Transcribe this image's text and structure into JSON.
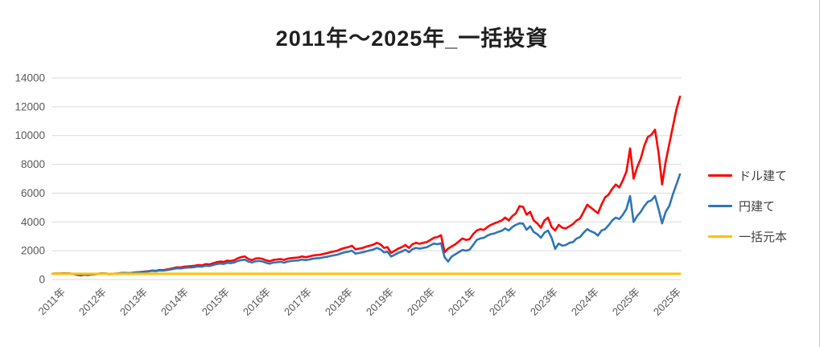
{
  "title": "2011年～2025年_一括投資",
  "chart_data": {
    "type": "line",
    "title": "2011年～2025年_一括投資",
    "xlabel": "",
    "ylabel": "",
    "x_frequency": "monthly, 2011-01 through 2025-09",
    "x_tick_labels": [
      "2011年",
      "2012年",
      "2013年",
      "2014年",
      "2015年",
      "2016年",
      "2017年",
      "2018年",
      "2019年",
      "2020年",
      "2021年",
      "2022年",
      "2023年",
      "2024年",
      "2025年",
      "2025年"
    ],
    "y_axis": {
      "min": 0,
      "max": 14000,
      "step": 2000,
      "tick_labels": [
        "0",
        "2000",
        "4000",
        "6000",
        "8000",
        "10000",
        "12000",
        "14000"
      ]
    },
    "grid": true,
    "legend_position": "right",
    "series": [
      {
        "name": "ドル建て",
        "color": "#FF0000",
        "values": [
          400,
          420,
          415,
          435,
          430,
          410,
          390,
          320,
          290,
          335,
          305,
          350,
          370,
          405,
          430,
          420,
          380,
          400,
          420,
          445,
          465,
          450,
          445,
          475,
          505,
          525,
          560,
          580,
          625,
          605,
          665,
          645,
          695,
          735,
          790,
          850,
          840,
          890,
          910,
          930,
          960,
          1010,
          990,
          1070,
          1050,
          1120,
          1200,
          1250,
          1220,
          1310,
          1290,
          1340,
          1480,
          1560,
          1600,
          1420,
          1350,
          1460,
          1480,
          1430,
          1330,
          1270,
          1360,
          1390,
          1420,
          1360,
          1450,
          1490,
          1510,
          1530,
          1600,
          1550,
          1600,
          1660,
          1700,
          1720,
          1780,
          1830,
          1900,
          1950,
          2010,
          2120,
          2200,
          2250,
          2350,
          2100,
          2150,
          2200,
          2280,
          2350,
          2420,
          2550,
          2450,
          2200,
          2250,
          1850,
          2000,
          2150,
          2250,
          2400,
          2200,
          2450,
          2550,
          2480,
          2550,
          2600,
          2750,
          2900,
          2950,
          3080,
          1900,
          2150,
          2300,
          2450,
          2650,
          2850,
          2750,
          2800,
          3150,
          3400,
          3500,
          3450,
          3650,
          3800,
          3900,
          4000,
          4100,
          4300,
          4100,
          4400,
          4600,
          5100,
          5050,
          4500,
          4700,
          4100,
          3900,
          3600,
          4100,
          4300,
          3650,
          3400,
          3800,
          3600,
          3550,
          3700,
          3850,
          4100,
          4250,
          4700,
          5200,
          5000,
          4800,
          4600,
          5200,
          5700,
          5900,
          6300,
          6600,
          6400,
          6900,
          7500,
          9100,
          7000,
          7800,
          8400,
          9300,
          9900,
          10050,
          10400,
          8800,
          6600,
          8200,
          9400,
          10600,
          11800,
          12700
        ]
      },
      {
        "name": "円建て",
        "color": "#2E75B6",
        "values": [
          400,
          415,
          405,
          425,
          420,
          405,
          385,
          335,
          310,
          350,
          325,
          360,
          375,
          400,
          425,
          415,
          385,
          400,
          415,
          435,
          450,
          445,
          450,
          490,
          510,
          525,
          550,
          565,
          600,
          580,
          630,
          615,
          655,
          690,
          735,
          780,
          770,
          810,
          830,
          845,
          870,
          910,
          895,
          960,
          945,
          1000,
          1070,
          1110,
          1080,
          1160,
          1140,
          1180,
          1290,
          1350,
          1380,
          1250,
          1180,
          1270,
          1290,
          1250,
          1160,
          1100,
          1180,
          1200,
          1230,
          1170,
          1250,
          1290,
          1310,
          1330,
          1390,
          1350,
          1390,
          1440,
          1470,
          1490,
          1540,
          1580,
          1640,
          1680,
          1730,
          1820,
          1890,
          1930,
          2010,
          1800,
          1840,
          1890,
          1960,
          2020,
          2080,
          2190,
          2100,
          1890,
          1930,
          1600,
          1720,
          1850,
          1940,
          2070,
          1900,
          2110,
          2200,
          2140,
          2200,
          2240,
          2370,
          2500,
          2450,
          2520,
          1550,
          1250,
          1600,
          1750,
          1900,
          2050,
          2000,
          2070,
          2400,
          2750,
          2850,
          2900,
          3050,
          3150,
          3200,
          3300,
          3380,
          3550,
          3400,
          3650,
          3800,
          3900,
          3880,
          3450,
          3700,
          3300,
          3150,
          2900,
          3250,
          3400,
          2900,
          2130,
          2500,
          2350,
          2400,
          2550,
          2600,
          2850,
          2950,
          3250,
          3500,
          3350,
          3250,
          3050,
          3400,
          3500,
          3770,
          4100,
          4300,
          4200,
          4500,
          4900,
          5800,
          4000,
          4400,
          4700,
          5100,
          5400,
          5500,
          5800,
          4900,
          3900,
          4700,
          5100,
          5900,
          6600,
          7300
        ]
      },
      {
        "name": "一括元本",
        "color": "#FFC000",
        "constant": 400
      }
    ]
  },
  "legend": {
    "items": [
      {
        "label": "ドル建て",
        "color": "#FF0000"
      },
      {
        "label": "円建て",
        "color": "#2E75B6"
      },
      {
        "label": "一括元本",
        "color": "#FFC000"
      }
    ]
  },
  "style": {
    "gridline_color": "#D9D9D9",
    "axis_text_color": "#595959",
    "title_color": "#1f1f1f",
    "background": "#FFFFFF"
  }
}
